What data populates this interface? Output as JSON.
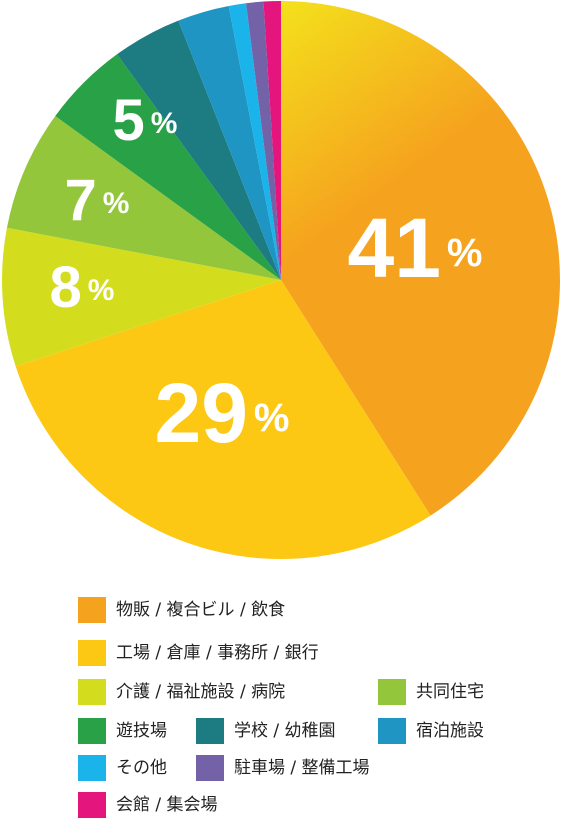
{
  "chart_data": {
    "type": "pie",
    "categories": [
      "物販 / 複合ビル / 飲食",
      "工場 / 倉庫 / 事務所 / 銀行",
      "介護 / 福祉施設 / 病院",
      "共同住宅",
      "遊技場",
      "学校 / 幼稚園",
      "宿泊施設",
      "その他",
      "駐車場 / 整備工場",
      "会館 / 集会場"
    ],
    "values": [
      41,
      29,
      8,
      7,
      5,
      4,
      3,
      1,
      1,
      1
    ],
    "value_labels": [
      "41%",
      "29%",
      "8%",
      "7%",
      "5%",
      null,
      null,
      null,
      null,
      null
    ],
    "colors": [
      "#f5a21e",
      "#fcc814",
      "#d3dd1e",
      "#94c63c",
      "#29a146",
      "#1d7b82",
      "#1f95c4",
      "#1bb4ea",
      "#7462a9",
      "#e4157c"
    ]
  }
}
